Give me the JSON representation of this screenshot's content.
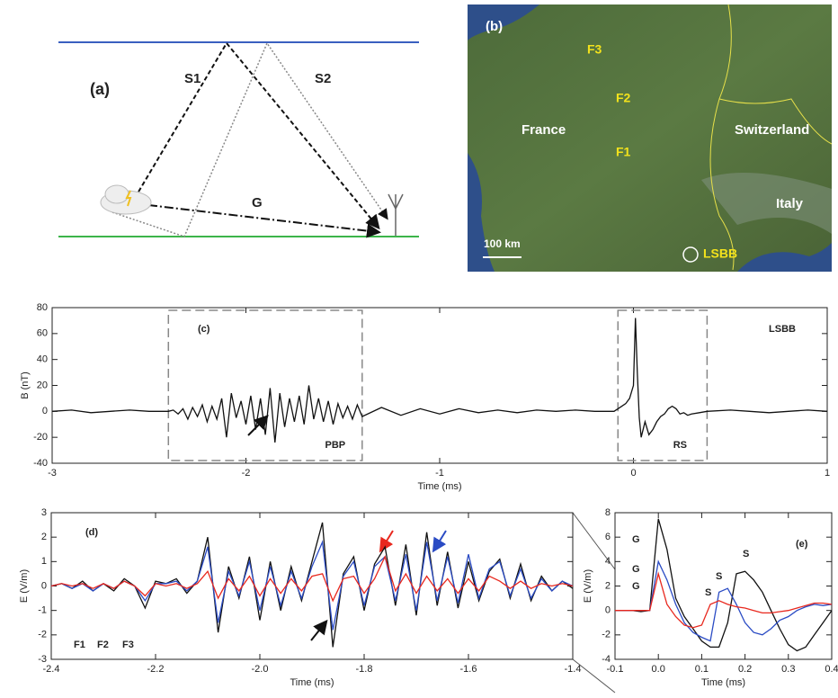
{
  "diagram": {
    "label": "(a)",
    "paths": [
      "S1",
      "S2",
      "G"
    ]
  },
  "map": {
    "label": "(b)",
    "stations": [
      "F3",
      "F2",
      "F1"
    ],
    "countries": [
      "France",
      "Switzerland",
      "Italy"
    ],
    "scale": "100 km",
    "site": "LSBB"
  },
  "chart_data": [
    {
      "type": "line",
      "label": "(c)",
      "station": "LSBB",
      "xlabel": "Time (ms)",
      "ylabel": "B (nT)",
      "xlim": [
        -3,
        1
      ],
      "ylim": [
        -40,
        80
      ],
      "xticks": [
        -3,
        -2,
        -1,
        0,
        1
      ],
      "yticks": [
        -40,
        -20,
        0,
        20,
        40,
        60,
        80
      ],
      "regions": [
        {
          "label": "PBP",
          "xlim": [
            -2.4,
            -1.4
          ]
        },
        {
          "label": "RS",
          "xlim": [
            -0.08,
            0.38
          ]
        }
      ],
      "x": [
        -3,
        -2.9,
        -2.8,
        -2.7,
        -2.6,
        -2.5,
        -2.4,
        -2.375,
        -2.35,
        -2.325,
        -2.3,
        -2.275,
        -2.25,
        -2.225,
        -2.2,
        -2.175,
        -2.15,
        -2.125,
        -2.1,
        -2.075,
        -2.05,
        -2.025,
        -2.0,
        -1.975,
        -1.95,
        -1.925,
        -1.9,
        -1.875,
        -1.85,
        -1.825,
        -1.8,
        -1.775,
        -1.75,
        -1.725,
        -1.7,
        -1.675,
        -1.65,
        -1.625,
        -1.6,
        -1.575,
        -1.55,
        -1.525,
        -1.5,
        -1.475,
        -1.45,
        -1.425,
        -1.4,
        -1.3,
        -1.2,
        -1.1,
        -1.0,
        -0.9,
        -0.8,
        -0.7,
        -0.6,
        -0.5,
        -0.4,
        -0.3,
        -0.2,
        -0.1,
        -0.08,
        -0.06,
        -0.04,
        -0.02,
        0,
        0.01,
        0.02,
        0.03,
        0.04,
        0.06,
        0.08,
        0.1,
        0.12,
        0.14,
        0.16,
        0.18,
        0.2,
        0.22,
        0.24,
        0.26,
        0.28,
        0.3,
        0.34,
        0.38,
        0.5,
        0.6,
        0.7,
        0.8,
        0.9,
        1.0
      ],
      "series": [
        {
          "color": "#111111",
          "values": [
            0,
            1,
            -1,
            0,
            1,
            0,
            0,
            1,
            -2,
            2,
            -6,
            3,
            -4,
            5,
            -8,
            4,
            -6,
            10,
            -20,
            14,
            -5,
            8,
            -10,
            12,
            -14,
            10,
            -18,
            18,
            -24,
            14,
            -12,
            10,
            -8,
            12,
            -10,
            20,
            -6,
            10,
            -8,
            8,
            -10,
            6,
            -5,
            4,
            -6,
            5,
            -4,
            3,
            -3,
            2,
            -2,
            2,
            -1,
            1,
            -1,
            1,
            0,
            1,
            0,
            0,
            2,
            4,
            6,
            10,
            20,
            72,
            30,
            -5,
            -20,
            -8,
            -18,
            -14,
            -8,
            -4,
            -2,
            2,
            4,
            2,
            -2,
            -1,
            -3,
            -2,
            -1,
            0,
            1,
            0,
            -1,
            0,
            1,
            0
          ]
        }
      ]
    },
    {
      "type": "line",
      "label": "(d)",
      "xlabel": "Time (ms)",
      "ylabel": "E (V/m)",
      "xlim": [
        -2.4,
        -1.4
      ],
      "ylim": [
        -3,
        3
      ],
      "xticks": [
        -2.4,
        -2.2,
        {
          "value": -2,
          "label": "-2.0"
        },
        -1.8,
        -1.6,
        -1.4
      ],
      "yticks": [
        -3,
        -2,
        -1,
        0,
        1,
        2,
        3
      ],
      "x": [
        -2.4,
        -2.38,
        -2.36,
        -2.34,
        -2.32,
        -2.3,
        -2.28,
        -2.26,
        -2.24,
        -2.22,
        -2.2,
        -2.18,
        -2.16,
        -2.14,
        -2.12,
        -2.1,
        -2.08,
        -2.06,
        -2.04,
        -2.02,
        -2.0,
        -1.98,
        -1.96,
        -1.94,
        -1.92,
        -1.9,
        -1.88,
        -1.86,
        -1.84,
        -1.82,
        -1.8,
        -1.78,
        -1.76,
        -1.74,
        -1.72,
        -1.7,
        -1.68,
        -1.66,
        -1.64,
        -1.62,
        -1.6,
        -1.58,
        -1.56,
        -1.54,
        -1.52,
        -1.5,
        -1.48,
        -1.46,
        -1.44,
        -1.42,
        -1.4
      ],
      "series": [
        {
          "name": "F1",
          "color": "#111111",
          "values": [
            0,
            0.1,
            -0.1,
            0.2,
            -0.2,
            0.1,
            -0.2,
            0.3,
            0,
            -0.9,
            0.2,
            0.1,
            0.3,
            -0.3,
            0.2,
            2.0,
            -1.9,
            0.8,
            -0.5,
            1.2,
            -1.4,
            1.0,
            -1.0,
            0.8,
            -0.6,
            1.0,
            2.6,
            -2.5,
            0.5,
            1.2,
            -1.0,
            0.9,
            1.6,
            -0.8,
            1.7,
            -1.2,
            2.2,
            -0.8,
            1.4,
            -0.9,
            1.0,
            -0.6,
            0.6,
            1.1,
            -0.5,
            0.9,
            -0.6,
            0.4,
            -0.2,
            0.2,
            -0.1
          ]
        },
        {
          "name": "F2",
          "color": "#2a4bc4",
          "values": [
            0,
            0.1,
            -0.1,
            0.1,
            -0.2,
            0.1,
            -0.1,
            0.2,
            0,
            -0.6,
            0.1,
            0.1,
            0.2,
            -0.2,
            0.2,
            1.6,
            -1.5,
            0.6,
            -0.4,
            1.0,
            -1.0,
            0.8,
            -0.8,
            0.6,
            -0.5,
            0.8,
            1.8,
            -1.8,
            0.4,
            1.0,
            -0.8,
            0.8,
            1.2,
            -0.6,
            1.3,
            -1.0,
            1.8,
            -0.6,
            1.2,
            -0.7,
            1.3,
            -0.5,
            0.7,
            1.0,
            -0.4,
            0.7,
            -0.5,
            0.3,
            -0.2,
            0.2,
            0
          ]
        },
        {
          "name": "F3",
          "color": "#e8281e",
          "values": [
            0,
            0.1,
            0,
            0.1,
            -0.1,
            0.1,
            -0.1,
            0.2,
            0,
            -0.4,
            0.1,
            0,
            0.1,
            -0.1,
            0.1,
            0.6,
            -0.5,
            0.3,
            -0.2,
            0.4,
            -0.4,
            0.3,
            -0.3,
            0.3,
            -0.2,
            0.4,
            0.5,
            -0.6,
            0.3,
            0.4,
            -0.3,
            0.3,
            1.2,
            -0.2,
            0.5,
            -0.3,
            0.4,
            -0.2,
            0.3,
            -0.3,
            0.3,
            -0.2,
            0.4,
            0.2,
            -0.1,
            0.2,
            -0.1,
            0.1,
            0,
            0.1,
            0
          ]
        }
      ]
    },
    {
      "type": "line",
      "label": "(e)",
      "xlabel": "Time (ms)",
      "ylabel": "E (V/m)",
      "xlim": [
        -0.1,
        0.4
      ],
      "ylim": [
        -4,
        8
      ],
      "xticks": [
        -0.1,
        {
          "value": 0,
          "label": "0.0"
        },
        0.1,
        0.2,
        0.3,
        0.4
      ],
      "yticks": [
        -4,
        -2,
        0,
        2,
        4,
        6,
        8
      ],
      "x": [
        -0.1,
        -0.08,
        -0.06,
        -0.04,
        -0.02,
        0,
        0.02,
        0.04,
        0.06,
        0.08,
        0.1,
        0.12,
        0.14,
        0.16,
        0.18,
        0.2,
        0.22,
        0.24,
        0.26,
        0.28,
        0.3,
        0.32,
        0.34,
        0.36,
        0.38,
        0.4
      ],
      "series": [
        {
          "color": "#111111",
          "labels": [
            "G",
            "S"
          ],
          "values": [
            0,
            0,
            0,
            -0.1,
            0,
            7.5,
            5,
            1,
            -0.5,
            -1.5,
            -2.5,
            -3,
            -3,
            -1,
            3,
            3.2,
            2.5,
            1.5,
            0,
            -1.5,
            -2.8,
            -3.3,
            -3,
            -2,
            -1,
            0
          ]
        },
        {
          "color": "#2a4bc4",
          "labels": [
            "G",
            "S"
          ],
          "values": [
            0,
            0,
            0,
            0,
            0,
            4,
            2.5,
            0.5,
            -1,
            -1.8,
            -2.2,
            -2.5,
            1.5,
            1.8,
            0.5,
            -1,
            -1.8,
            -2,
            -1.5,
            -0.8,
            -0.5,
            0,
            0.3,
            0.5,
            0.4,
            0.5
          ]
        },
        {
          "color": "#e8281e",
          "labels": [
            "G",
            "S"
          ],
          "values": [
            0,
            0,
            0,
            0,
            0,
            3,
            0.5,
            -0.5,
            -1.2,
            -1.4,
            -1.2,
            0.5,
            0.8,
            0.5,
            0.3,
            0.2,
            0,
            -0.2,
            -0.2,
            -0.1,
            0,
            0.2,
            0.4,
            0.6,
            0.6,
            0.5
          ]
        }
      ]
    }
  ]
}
